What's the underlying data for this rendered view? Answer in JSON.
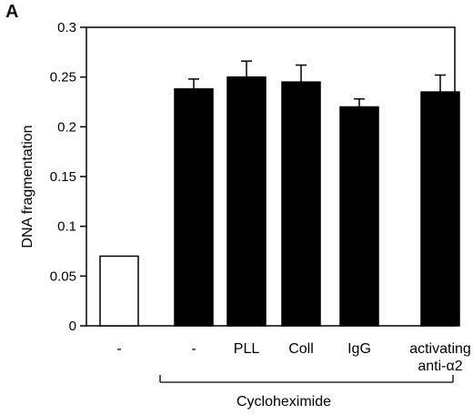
{
  "panel_label": "A",
  "chart_data": {
    "type": "bar",
    "ylabel": "DNA fragmentation",
    "ylim": [
      0,
      0.3
    ],
    "yticks": [
      "0",
      "0.05",
      "0.1",
      "0.15",
      "0.2",
      "0.25",
      "0.3"
    ],
    "categories": [
      [
        "-"
      ],
      [
        "-"
      ],
      [
        "PLL"
      ],
      [
        "Coll"
      ],
      [
        "IgG"
      ],
      [
        "activating",
        "anti-α2"
      ]
    ],
    "values": [
      0.07,
      0.238,
      0.25,
      0.245,
      0.22,
      0.235
    ],
    "errors": [
      0,
      0.01,
      0.016,
      0.017,
      0.008,
      0.017
    ],
    "fill": [
      "#ffffff",
      "#000000",
      "#000000",
      "#000000",
      "#000000",
      "#000000"
    ],
    "group_label": "Cycloheximide"
  }
}
